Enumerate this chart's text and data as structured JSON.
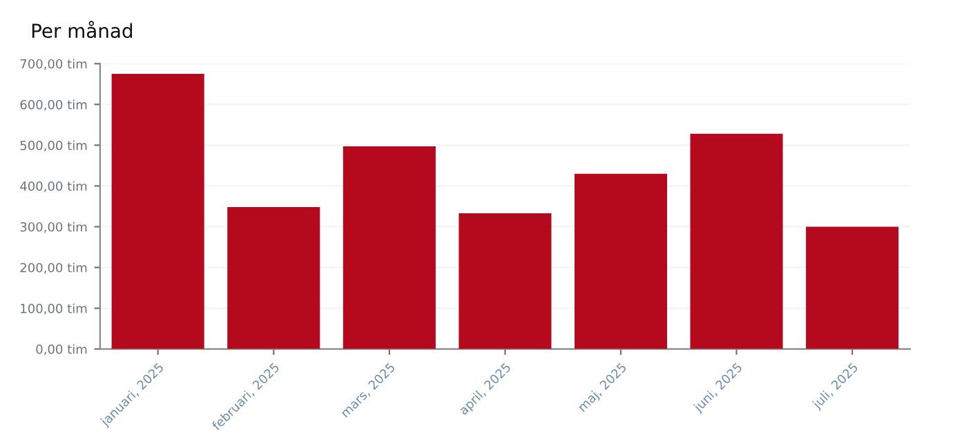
{
  "chart_data": {
    "type": "bar",
    "title": "Per månad",
    "categories": [
      "januari, 2025",
      "februari, 2025",
      "mars, 2025",
      "april, 2025",
      "maj, 2025",
      "juni, 2025",
      "juli, 2025"
    ],
    "values": [
      675,
      348,
      497,
      333,
      430,
      528,
      300
    ],
    "color": "#b5091d",
    "ylim": [
      0,
      700
    ],
    "yticks": [
      {
        "value": 0,
        "label": "0,00 tim"
      },
      {
        "value": 100,
        "label": "100,00 tim"
      },
      {
        "value": 200,
        "label": "200,00 tim"
      },
      {
        "value": 300,
        "label": "300,00 tim"
      },
      {
        "value": 400,
        "label": "400,00 tim"
      },
      {
        "value": 500,
        "label": "500,00 tim"
      },
      {
        "value": 600,
        "label": "600,00 tim"
      },
      {
        "value": 700,
        "label": "700,00 tim"
      }
    ],
    "grid": "y"
  }
}
